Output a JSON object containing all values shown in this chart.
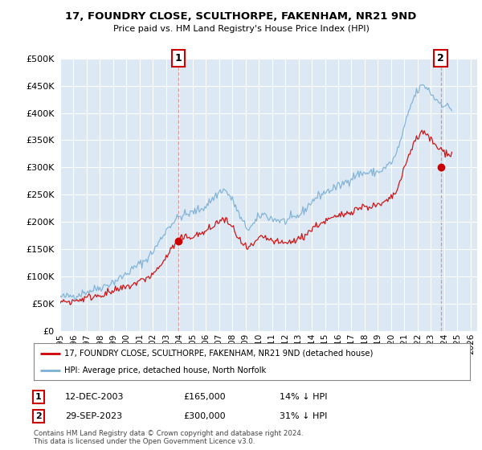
{
  "title": "17, FOUNDRY CLOSE, SCULTHORPE, FAKENHAM, NR21 9ND",
  "subtitle": "Price paid vs. HM Land Registry's House Price Index (HPI)",
  "legend_line1": "17, FOUNDRY CLOSE, SCULTHORPE, FAKENHAM, NR21 9ND (detached house)",
  "legend_line2": "HPI: Average price, detached house, North Norfolk",
  "marker1_date": "12-DEC-2003",
  "marker1_price": "£165,000",
  "marker1_hpi": "14% ↓ HPI",
  "marker2_date": "29-SEP-2023",
  "marker2_price": "£300,000",
  "marker2_hpi": "31% ↓ HPI",
  "copyright": "Contains HM Land Registry data © Crown copyright and database right 2024.\nThis data is licensed under the Open Government Licence v3.0.",
  "hpi_color": "#7bafd4",
  "price_color": "#cc0000",
  "dashed_color": "#e89090",
  "marker_color": "#cc0000",
  "background_color": "#ffffff",
  "chart_bg_color": "#dce9f5",
  "grid_color": "#ffffff",
  "ylim": [
    0,
    500000
  ],
  "yticks": [
    0,
    50000,
    100000,
    150000,
    200000,
    250000,
    300000,
    350000,
    400000,
    450000,
    500000
  ],
  "xlim_start": 1995.0,
  "xlim_end": 2026.5,
  "marker1_x": 2003.917,
  "marker1_y": 165000,
  "marker2_x": 2023.75,
  "marker2_y": 300000
}
